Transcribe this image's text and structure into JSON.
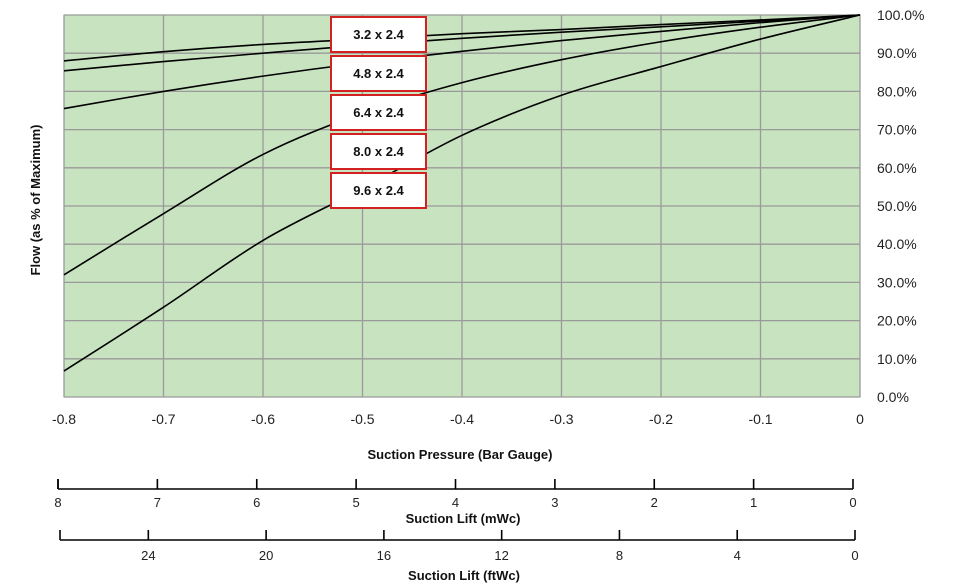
{
  "colors": {
    "plot_background": "#c8e3bf",
    "grid": "#9a9a9a",
    "curve": "#000000",
    "badge_border": "#d32020"
  },
  "chart_data": {
    "type": "line",
    "title": "",
    "xlabel": "Suction Pressure (Bar Gauge)",
    "ylabel": "Flow (as % of Maximum)",
    "xlim": [
      -0.8,
      0
    ],
    "ylim": [
      0,
      100
    ],
    "x_ticks": [
      "-0.8",
      "-0.7",
      "-0.6",
      "-0.5",
      "-0.4",
      "-0.3",
      "-0.2",
      "-0.1",
      "0"
    ],
    "y_ticks": [
      "0.0%",
      "10.0%",
      "20.0%",
      "30.0%",
      "40.0%",
      "50.0%",
      "60.0%",
      "70.0%",
      "80.0%",
      "90.0%",
      "100.0%"
    ],
    "y_axis_side": "right",
    "grid": true,
    "x": [
      -0.8,
      -0.7,
      -0.6,
      -0.5,
      -0.4,
      -0.3,
      -0.2,
      -0.1,
      0
    ],
    "series": [
      {
        "name": "3.2 x 2.4",
        "values": [
          88.0,
          90.4,
          92.3,
          93.7,
          95.1,
          96.2,
          97.5,
          98.7,
          100
        ]
      },
      {
        "name": "4.8 x 2.4",
        "values": [
          85.4,
          87.8,
          90.0,
          92.1,
          93.9,
          95.5,
          96.9,
          98.4,
          100
        ]
      },
      {
        "name": "6.4 x 2.4",
        "values": [
          75.5,
          80.0,
          84.0,
          87.5,
          90.5,
          93.3,
          95.7,
          98.0,
          100
        ]
      },
      {
        "name": "8.0 x 2.4",
        "values": [
          32.0,
          48.0,
          63.5,
          74.3,
          82.3,
          88.3,
          93.0,
          96.8,
          100
        ]
      },
      {
        "name": "9.6 x 2.4",
        "values": [
          6.8,
          23.5,
          41.0,
          54.5,
          68.5,
          79.0,
          86.5,
          93.7,
          100
        ]
      }
    ],
    "secondary_scales": [
      {
        "label": "Suction Lift (mWc)",
        "ticks": [
          "8",
          "7",
          "6",
          "5",
          "4",
          "3",
          "2",
          "1",
          "0"
        ],
        "values": [
          8,
          7,
          6,
          5,
          4,
          3,
          2,
          1,
          0
        ]
      },
      {
        "label": "Suction Lift (ftWc)",
        "ticks": [
          "24",
          "20",
          "16",
          "12",
          "8",
          "4",
          "0"
        ],
        "values": [
          24,
          20,
          16,
          12,
          8,
          4,
          0
        ]
      }
    ]
  }
}
